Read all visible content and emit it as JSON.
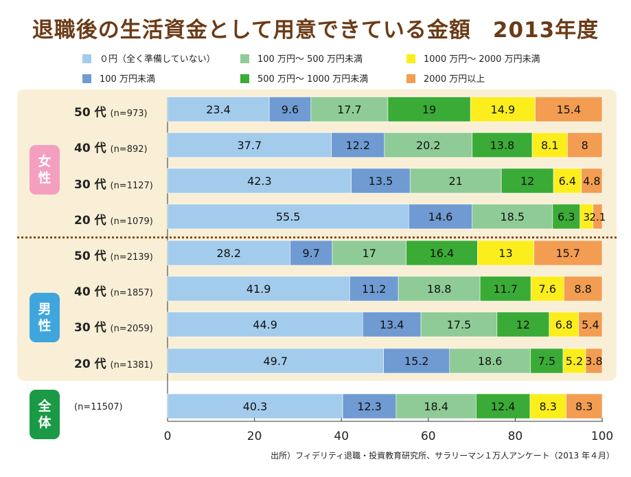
{
  "title": "退職後の生活資金として用意できている金額　2013年度",
  "source": "出所）フィデリティ退職・投資教育研究所、サラリーマン１万人アンケート（2013 年４月）",
  "groups": {
    "female": "女\n性",
    "male": "男\n性",
    "all": "全\n体"
  },
  "colors": {
    "s0": "#a3cbec",
    "s1": "#6f9bd2",
    "s2": "#8fcb96",
    "s3": "#3aab36",
    "s4": "#fbee1c",
    "s5": "#f39d52",
    "female_badge": "#f49fbf",
    "male_badge": "#3fa6dd",
    "all_badge": "#1a9a46"
  },
  "chart_data": {
    "type": "bar",
    "orientation": "horizontal",
    "stacked": true,
    "xlim": [
      0,
      100
    ],
    "xticks": [
      0,
      20,
      40,
      60,
      80,
      100
    ],
    "legend_position": "top",
    "series": [
      {
        "name": "０円（全く準備していない）",
        "values": [
          23.4,
          37.7,
          42.3,
          55.5,
          28.2,
          41.9,
          44.9,
          49.7,
          40.3
        ]
      },
      {
        "name": "100 万円未満",
        "values": [
          9.6,
          12.2,
          13.5,
          14.6,
          9.7,
          11.2,
          13.4,
          15.2,
          12.3
        ]
      },
      {
        "name": "100 万円～ 500 万円未満",
        "values": [
          17.7,
          20.2,
          21,
          18.5,
          17,
          18.8,
          17.5,
          18.6,
          18.4
        ]
      },
      {
        "name": "500 万円～ 1000 万円未満",
        "values": [
          19,
          13.8,
          12,
          6.3,
          16.4,
          11.7,
          12,
          7.5,
          12.4
        ]
      },
      {
        "name": "1000 万円～ 2000 万円未満",
        "values": [
          14.9,
          8.1,
          6.4,
          3,
          13,
          7.6,
          6.8,
          5.2,
          8.3
        ]
      },
      {
        "name": "2000 万円以上",
        "values": [
          15.4,
          8,
          4.8,
          2.1,
          15.7,
          8.8,
          5.4,
          3.8,
          8.3
        ]
      }
    ],
    "rows": [
      {
        "age": "50 代",
        "n": "(n=973)"
      },
      {
        "age": "40 代",
        "n": "(n=892)"
      },
      {
        "age": "30 代",
        "n": "(n=1127)"
      },
      {
        "age": "20 代",
        "n": "(n=1079)"
      },
      {
        "age": "50 代",
        "n": "(n=2139)"
      },
      {
        "age": "40 代",
        "n": "(n=1857)"
      },
      {
        "age": "30 代",
        "n": "(n=2059)"
      },
      {
        "age": "20 代",
        "n": "(n=1381)"
      },
      {
        "age": "",
        "n": "(n=11507)"
      }
    ]
  }
}
